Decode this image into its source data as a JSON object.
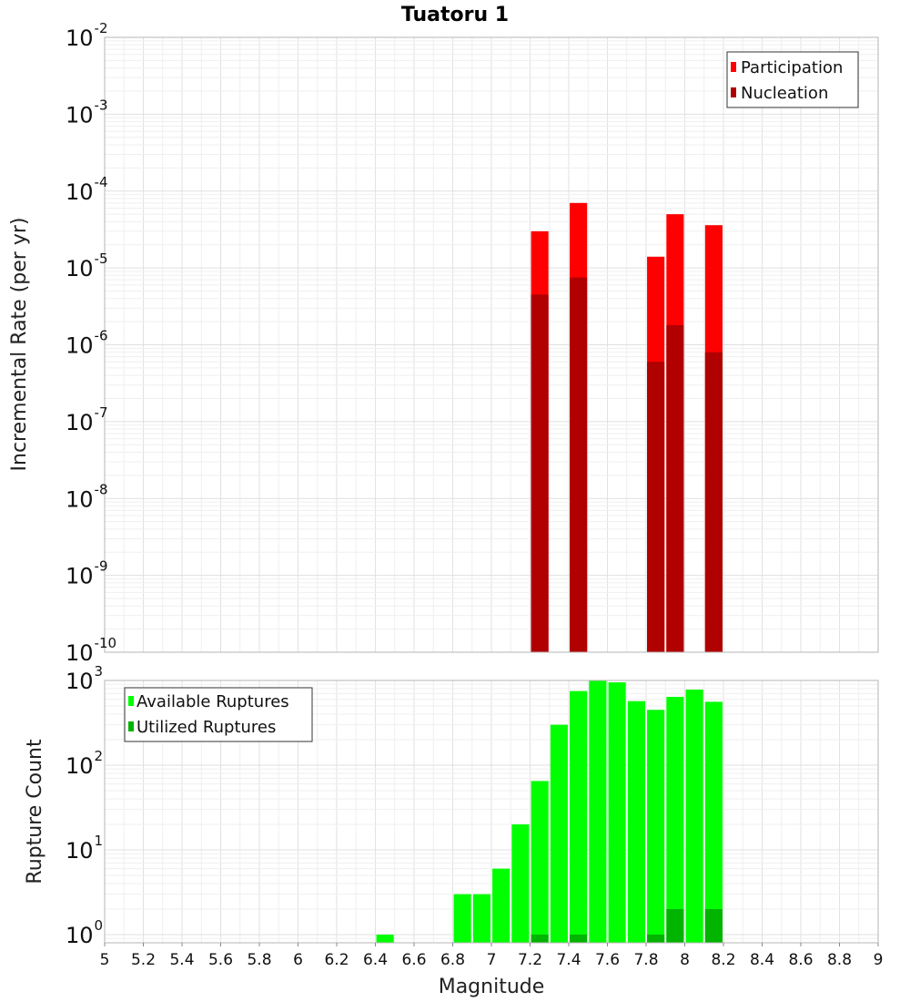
{
  "chart_data": [
    {
      "type": "bar",
      "title": "Tuatoru 1",
      "xlabel": "",
      "ylabel": "Incremental Rate (per yr)",
      "xlim": [
        5,
        9
      ],
      "ylim": [
        1e-10,
        0.01
      ],
      "yscale": "log",
      "grid": true,
      "legend": {
        "placement": "top-right",
        "entries": [
          "Participation",
          "Nucleation"
        ]
      },
      "x": [
        7.25,
        7.45,
        7.85,
        7.95,
        8.15
      ],
      "series": [
        {
          "name": "Participation",
          "color": "#ff0000",
          "values": [
            3e-05,
            7e-05,
            1.4e-05,
            5e-05,
            3.6e-05
          ]
        },
        {
          "name": "Nucleation",
          "color": "#b00000",
          "values": [
            4.5e-06,
            7.5e-06,
            6e-07,
            1.8e-06,
            8e-07
          ]
        }
      ],
      "ytick_exponents": [
        -10,
        -9,
        -8,
        -7,
        -6,
        -5,
        -4,
        -3,
        -2
      ]
    },
    {
      "type": "bar",
      "title": "",
      "xlabel": "Magnitude",
      "ylabel": "Rupture Count",
      "xlim": [
        5,
        9
      ],
      "ylim": [
        0.8,
        1000
      ],
      "yscale": "log",
      "grid": true,
      "legend": {
        "placement": "top-left",
        "entries": [
          "Available Ruptures",
          "Utilized Ruptures"
        ]
      },
      "x": [
        6.45,
        6.85,
        6.95,
        7.05,
        7.15,
        7.25,
        7.35,
        7.45,
        7.55,
        7.65,
        7.75,
        7.85,
        7.95,
        8.05,
        8.15
      ],
      "series": [
        {
          "name": "Available Ruptures",
          "color": "#00ff00",
          "values": [
            1,
            3,
            3,
            6,
            20,
            65,
            300,
            750,
            1000,
            950,
            570,
            450,
            640,
            780,
            560
          ]
        },
        {
          "name": "Utilized Ruptures",
          "color": "#00b400",
          "values": [
            0,
            0,
            0,
            0,
            0,
            1,
            0,
            1,
            0,
            0,
            0,
            1,
            2,
            0,
            2
          ]
        }
      ],
      "xticks": [
        "5",
        "5.2",
        "5.4",
        "5.6",
        "5.8",
        "6",
        "6.2",
        "6.4",
        "6.6",
        "6.8",
        "7",
        "7.2",
        "7.4",
        "7.6",
        "7.8",
        "8",
        "8.2",
        "8.4",
        "8.6",
        "8.8",
        "9"
      ],
      "ytick_exponents": [
        0,
        1,
        2,
        3
      ]
    }
  ]
}
